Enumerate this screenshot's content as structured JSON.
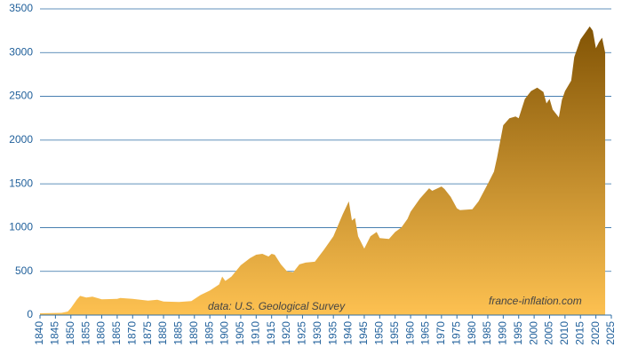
{
  "chart_data": {
    "type": "area",
    "annotations": [
      "data: U.S. Geological Survey",
      "france-inflation.com"
    ],
    "x": [
      1840,
      1847,
      1849,
      1850,
      1852,
      1853,
      1855,
      1857,
      1860,
      1865,
      1866,
      1870,
      1875,
      1878,
      1880,
      1885,
      1889,
      1892,
      1895,
      1898,
      1899,
      1900,
      1902,
      1905,
      1908,
      1910,
      1912,
      1914,
      1915,
      1916,
      1918,
      1920,
      1922,
      1924,
      1926,
      1929,
      1932,
      1935,
      1938,
      1940,
      1941,
      1942,
      1943,
      1945,
      1947,
      1949,
      1950,
      1953,
      1955,
      1957,
      1959,
      1960,
      1963,
      1966,
      1967,
      1970,
      1971,
      1973,
      1975,
      1976,
      1980,
      1982,
      1985,
      1987,
      1988,
      1990,
      1992,
      1994,
      1995,
      1997,
      1999,
      2001,
      2003,
      2004,
      2005,
      2006,
      2008,
      2009,
      2010,
      2012,
      2013,
      2015,
      2018,
      2019,
      2020,
      2021,
      2022,
      2023
    ],
    "values": [
      20,
      25,
      40,
      80,
      180,
      220,
      200,
      210,
      180,
      185,
      195,
      185,
      165,
      175,
      155,
      150,
      160,
      230,
      280,
      350,
      440,
      390,
      440,
      570,
      650,
      690,
      700,
      670,
      700,
      690,
      580,
      500,
      490,
      580,
      600,
      610,
      750,
      900,
      1150,
      1300,
      1080,
      1110,
      900,
      760,
      900,
      950,
      880,
      870,
      950,
      1000,
      1100,
      1180,
      1330,
      1450,
      1420,
      1470,
      1440,
      1350,
      1220,
      1200,
      1210,
      1300,
      1500,
      1640,
      1800,
      2170,
      2250,
      2270,
      2250,
      2470,
      2560,
      2600,
      2550,
      2420,
      2470,
      2350,
      2260,
      2460,
      2560,
      2680,
      2950,
      3150,
      3300,
      3250,
      3050,
      3120,
      3170,
      3000
    ],
    "color_top": "#7a4d00",
    "color_bottom": "#fdc151",
    "xlim": [
      1840,
      2025
    ],
    "xticks": [
      1840,
      1845,
      1850,
      1855,
      1860,
      1865,
      1870,
      1875,
      1880,
      1885,
      1890,
      1895,
      1900,
      1905,
      1910,
      1915,
      1920,
      1925,
      1930,
      1935,
      1940,
      1945,
      1950,
      1955,
      1960,
      1965,
      1970,
      1975,
      1980,
      1985,
      1990,
      1995,
      2000,
      2005,
      2010,
      2015,
      2020,
      2025
    ],
    "ylim": [
      0,
      3500
    ],
    "yticks": [
      0,
      500,
      1000,
      1500,
      2000,
      2500,
      3000,
      3500
    ],
    "grid": true
  }
}
